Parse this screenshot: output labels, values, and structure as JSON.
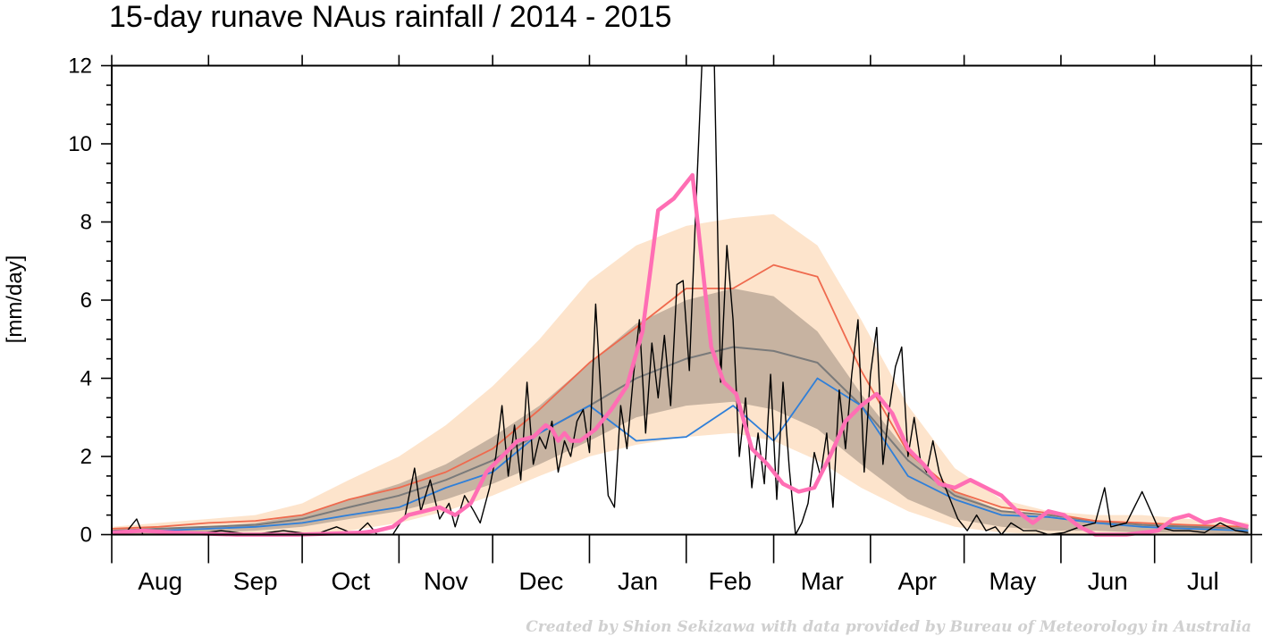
{
  "chart_data": {
    "type": "line",
    "title": "15-day runave NAus rainfall  /  2014 - 2015",
    "ylabel": "[mm/day]",
    "xlabel": "",
    "ylim": [
      0,
      12
    ],
    "y_ticks": [
      0,
      2,
      4,
      6,
      8,
      10,
      12
    ],
    "y_tick_labels": [
      "0",
      "2",
      "4",
      "6",
      "8",
      "10",
      "12"
    ],
    "months": [
      "Aug",
      "Sep",
      "Oct",
      "Nov",
      "Dec",
      "Jan",
      "Feb",
      "Mar",
      "Apr",
      "May",
      "Jun",
      "Jul"
    ],
    "month_lengths": [
      31,
      30,
      31,
      30,
      31,
      31,
      28,
      31,
      30,
      31,
      30,
      31
    ],
    "x_unit": "day of year starting 1 Aug 2014",
    "colors": {
      "outer_band": "#fde4cc",
      "inner_band": "#c7b3a1",
      "median": "#7a7a7a",
      "upper_line": "#ef6a4e",
      "lower_line": "#2f7fd9",
      "daily": "#000000",
      "runave": "#ff6eb4"
    },
    "bands": {
      "outer": {
        "x": [
          0,
          15,
          31,
          46,
          61,
          76,
          92,
          107,
          122,
          137,
          153,
          168,
          184,
          199,
          212,
          226,
          240,
          255,
          270,
          285,
          300,
          315,
          330,
          345,
          364
        ],
        "low": [
          0,
          0,
          0,
          0,
          0,
          0.1,
          0.3,
          0.6,
          1.0,
          1.5,
          2.0,
          2.3,
          2.5,
          2.6,
          2.4,
          1.9,
          1.2,
          0.6,
          0.2,
          0.05,
          0,
          0,
          0,
          0,
          0
        ],
        "high": [
          0.2,
          0.3,
          0.4,
          0.5,
          0.8,
          1.4,
          2.0,
          2.8,
          3.8,
          5.0,
          6.5,
          7.4,
          7.9,
          8.1,
          8.2,
          7.4,
          5.5,
          3.3,
          1.7,
          0.9,
          0.6,
          0.5,
          0.5,
          0.4,
          0.3
        ]
      },
      "inner": {
        "x": [
          0,
          15,
          31,
          46,
          61,
          76,
          92,
          107,
          122,
          137,
          153,
          168,
          184,
          199,
          212,
          226,
          240,
          255,
          270,
          285,
          300,
          315,
          330,
          345,
          364
        ],
        "low": [
          0,
          0,
          0.05,
          0.1,
          0.2,
          0.4,
          0.6,
          0.9,
          1.3,
          1.8,
          2.4,
          3.0,
          3.3,
          3.4,
          3.2,
          2.7,
          1.8,
          0.9,
          0.4,
          0.2,
          0.1,
          0.1,
          0.05,
          0.05,
          0
        ],
        "high": [
          0.1,
          0.15,
          0.2,
          0.3,
          0.5,
          0.9,
          1.3,
          1.8,
          2.5,
          3.3,
          4.4,
          5.4,
          6.0,
          6.3,
          6.1,
          5.2,
          3.6,
          2.1,
          1.1,
          0.6,
          0.45,
          0.35,
          0.3,
          0.25,
          0.15
        ]
      }
    },
    "series": [
      {
        "x": [
          0,
          15,
          31,
          46,
          61,
          76,
          92,
          107,
          122,
          137,
          153,
          168,
          184,
          199,
          212,
          226,
          240,
          255,
          270,
          285,
          300,
          315,
          330,
          345,
          364
        ],
        "y": [
          0.1,
          0.15,
          0.2,
          0.25,
          0.4,
          0.7,
          1.0,
          1.4,
          1.9,
          2.6,
          3.3,
          4.0,
          4.5,
          4.8,
          4.7,
          4.4,
          3.3,
          1.9,
          1.0,
          0.6,
          0.5,
          0.35,
          0.25,
          0.2,
          0.15
        ]
      },
      {
        "x": [
          0,
          15,
          31,
          46,
          61,
          76,
          92,
          107,
          122,
          137,
          153,
          168,
          184,
          199,
          212,
          226,
          240,
          255,
          270,
          285,
          300,
          315,
          330,
          345,
          364
        ],
        "y": [
          0.15,
          0.2,
          0.3,
          0.35,
          0.5,
          0.9,
          1.2,
          1.6,
          2.2,
          3.2,
          4.4,
          5.3,
          6.3,
          6.3,
          6.9,
          6.6,
          4.2,
          2.1,
          1.1,
          0.7,
          0.55,
          0.35,
          0.3,
          0.25,
          0.2
        ]
      },
      {
        "x": [
          0,
          15,
          31,
          46,
          61,
          76,
          92,
          107,
          122,
          137,
          153,
          168,
          184,
          199,
          212,
          226,
          240,
          255,
          270,
          285,
          300,
          315,
          330,
          345,
          364
        ],
        "y": [
          0.05,
          0.1,
          0.15,
          0.2,
          0.3,
          0.5,
          0.7,
          1.2,
          1.6,
          2.6,
          3.3,
          2.4,
          2.5,
          3.3,
          2.4,
          4.0,
          3.3,
          1.5,
          0.9,
          0.5,
          0.45,
          0.3,
          0.2,
          0.15,
          0.1
        ]
      },
      {
        "x": [
          0,
          5,
          8,
          10,
          15,
          25,
          35,
          45,
          55,
          65,
          72,
          78,
          82,
          85,
          90,
          94,
          97,
          99,
          102,
          105,
          108,
          110,
          113,
          116,
          118,
          121,
          123,
          125,
          127,
          129,
          131,
          133,
          135,
          137,
          139,
          141,
          143,
          145,
          147,
          149,
          151,
          153,
          155,
          157,
          159,
          161,
          163,
          165,
          167,
          169,
          171,
          173,
          175,
          177,
          179,
          181,
          183,
          185,
          187,
          189,
          191,
          193,
          195,
          197,
          199,
          201,
          203,
          205,
          207,
          209,
          211,
          213,
          215,
          217,
          219,
          221,
          223,
          225,
          227,
          229,
          231,
          233,
          235,
          237,
          239,
          241,
          243,
          245,
          247,
          249,
          251,
          253,
          255,
          257,
          259,
          261,
          263,
          265,
          268,
          271,
          274,
          277,
          280,
          283,
          285,
          288,
          292,
          296,
          300,
          305,
          310,
          315,
          318,
          320,
          325,
          330,
          335,
          340,
          345,
          350,
          355,
          360,
          364
        ],
        "y": [
          0,
          0.1,
          0.4,
          0,
          0,
          0,
          0.1,
          0,
          0.1,
          0,
          0.2,
          0,
          0.3,
          0,
          0,
          0.5,
          1.7,
          0.6,
          1.4,
          0.4,
          0.8,
          0.2,
          1.0,
          0.6,
          0.3,
          1.2,
          2.0,
          3.3,
          1.5,
          2.8,
          1.4,
          3.9,
          1.8,
          2.5,
          2.2,
          2.9,
          1.6,
          2.4,
          2.0,
          2.9,
          3.2,
          2.1,
          5.9,
          3.1,
          1.0,
          0.7,
          3.3,
          2.2,
          4.0,
          5.5,
          2.6,
          4.9,
          3.5,
          5.1,
          3.3,
          6.4,
          6.5,
          4.2,
          8.2,
          12,
          12,
          12,
          3.9,
          7.4,
          5.5,
          2.0,
          3.5,
          1.2,
          2.6,
          1.3,
          4.1,
          0.9,
          3.9,
          1.7,
          0,
          0.3,
          0.8,
          2.1,
          1.5,
          2.6,
          0.7,
          3.7,
          2.2,
          4.1,
          5.5,
          1.6,
          4.1,
          5.3,
          1.8,
          3.2,
          4.3,
          4.8,
          2.0,
          3.0,
          1.9,
          1.6,
          2.4,
          1.6,
          1.0,
          0.4,
          0.1,
          0.5,
          0.1,
          0.2,
          0,
          0.3,
          0.1,
          0.1,
          0,
          0.05,
          0.2,
          0.3,
          1.2,
          0.2,
          0.3,
          1.1,
          0.2,
          0.1,
          0.1,
          0.05,
          0.3,
          0.1,
          0.05
        ]
      },
      {
        "x": [
          0,
          10,
          20,
          40,
          60,
          80,
          85,
          90,
          95,
          100,
          105,
          110,
          115,
          120,
          125,
          130,
          135,
          139,
          141,
          143,
          145,
          147,
          150,
          155,
          160,
          165,
          170,
          175,
          180,
          183,
          186,
          189,
          192,
          196,
          200,
          205,
          210,
          215,
          220,
          225,
          230,
          235,
          240,
          245,
          250,
          255,
          260,
          265,
          270,
          275,
          280,
          285,
          290,
          295,
          300,
          305,
          310,
          315,
          320,
          325,
          330,
          335,
          340,
          345,
          350,
          355,
          364
        ],
        "y": [
          0.05,
          0.1,
          0.05,
          0,
          0,
          0.05,
          0.1,
          0.2,
          0.5,
          0.6,
          0.7,
          0.5,
          0.8,
          1.6,
          2.0,
          2.4,
          2.5,
          2.8,
          2.7,
          2.4,
          2.6,
          2.4,
          2.4,
          2.7,
          3.2,
          3.8,
          5.2,
          8.3,
          8.6,
          8.9,
          9.2,
          7.0,
          4.8,
          3.9,
          3.6,
          2.2,
          1.8,
          1.3,
          1.1,
          1.2,
          2.0,
          2.9,
          3.3,
          3.6,
          3.1,
          2.2,
          1.8,
          1.3,
          1.2,
          1.4,
          1.2,
          1.0,
          0.6,
          0.3,
          0.6,
          0.5,
          0.2,
          0,
          0,
          0,
          0.05,
          0.1,
          0.4,
          0.5,
          0.3,
          0.4,
          0.2
        ]
      }
    ],
    "credit": "Created by Shion Sekizawa with data provided by Bureau of Meteorology in Australia"
  }
}
